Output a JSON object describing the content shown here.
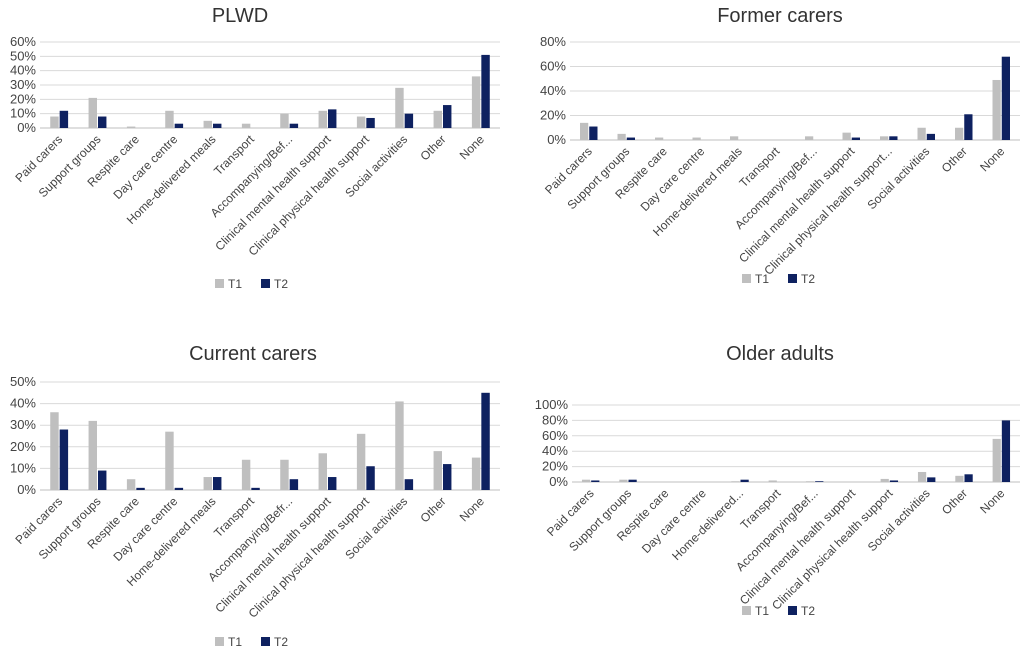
{
  "colors": {
    "T1": "#bfbfbf",
    "T2": "#0e2160"
  },
  "chart_data": [
    {
      "type": "bar",
      "title": "PLWD",
      "categories": [
        "Paid carers",
        "Support groups",
        "Respite care",
        "Day care centre",
        "Home-delivered meals",
        "Transport",
        "Accompanying/Bef...",
        "Clinical mental health support",
        "Clinical physical health support",
        "Social activities",
        "Other",
        "None"
      ],
      "series": [
        {
          "name": "T1",
          "values": [
            8,
            21,
            1,
            12,
            5,
            3,
            10,
            12,
            8,
            28,
            12,
            36
          ]
        },
        {
          "name": "T2",
          "values": [
            12,
            8,
            0,
            3,
            3,
            0,
            3,
            13,
            7,
            10,
            16,
            51
          ]
        }
      ],
      "yticks": [
        "0%",
        "10%",
        "20%",
        "30%",
        "40%",
        "50%",
        "60%"
      ],
      "ylim": [
        0,
        60
      ],
      "legend": "bottom",
      "grid": true
    },
    {
      "type": "bar",
      "title": "Former carers",
      "categories": [
        "Paid carers",
        "Support groups",
        "Respite care",
        "Day care centre",
        "Home-delivered meals",
        "Transport",
        "Accompanying/Bef...",
        "Clinical mental health support",
        "Clinical physical health support...",
        "Social activities",
        "Other",
        "None"
      ],
      "series": [
        {
          "name": "T1",
          "values": [
            14,
            5,
            2,
            2,
            3,
            0,
            3,
            6,
            3,
            10,
            10,
            49
          ]
        },
        {
          "name": "T2",
          "values": [
            11,
            2,
            0,
            0,
            0,
            0,
            0,
            2,
            3,
            5,
            21,
            68
          ]
        }
      ],
      "yticks": [
        "0%",
        "20%",
        "40%",
        "60%",
        "80%"
      ],
      "ylim": [
        0,
        80
      ],
      "legend": "bottom",
      "grid": true
    },
    {
      "type": "bar",
      "title": "Current carers",
      "categories": [
        "Paid carers",
        "Support groups",
        "Respite care",
        "Day care centre",
        "Home-delivered meals",
        "Transport",
        "Accompanying/Befr...",
        "Clinical mental health support",
        "Clinical physical health support",
        "Social activities",
        "Other",
        "None"
      ],
      "series": [
        {
          "name": "T1",
          "values": [
            36,
            32,
            5,
            27,
            6,
            14,
            14,
            17,
            26,
            41,
            18,
            15
          ]
        },
        {
          "name": "T2",
          "values": [
            28,
            9,
            1,
            1,
            6,
            1,
            5,
            6,
            11,
            5,
            12,
            45
          ]
        }
      ],
      "yticks": [
        "0%",
        "10%",
        "20%",
        "30%",
        "40%",
        "50%"
      ],
      "ylim": [
        0,
        50
      ],
      "legend": "bottom",
      "grid": true
    },
    {
      "type": "bar",
      "title": "Older adults",
      "categories": [
        "Paid carers",
        "Support groups",
        "Respite care",
        "Day care centre",
        "Home-delivered...",
        "Transport",
        "Accompanying/Bef...",
        "Clinical mental health support",
        "Clinical physical health support",
        "Social activities",
        "Other",
        "None"
      ],
      "series": [
        {
          "name": "T1",
          "values": [
            3,
            3,
            0,
            0,
            1,
            2,
            1,
            0,
            4,
            13,
            8,
            56
          ]
        },
        {
          "name": "T2",
          "values": [
            2,
            3,
            0,
            0,
            3,
            0,
            1,
            0,
            2,
            6,
            10,
            80
          ]
        }
      ],
      "yticks": [
        "0%",
        "20%",
        "40%",
        "60%",
        "80%",
        "100%"
      ],
      "ylim": [
        0,
        100
      ],
      "legend": "bottom",
      "grid": true
    }
  ]
}
